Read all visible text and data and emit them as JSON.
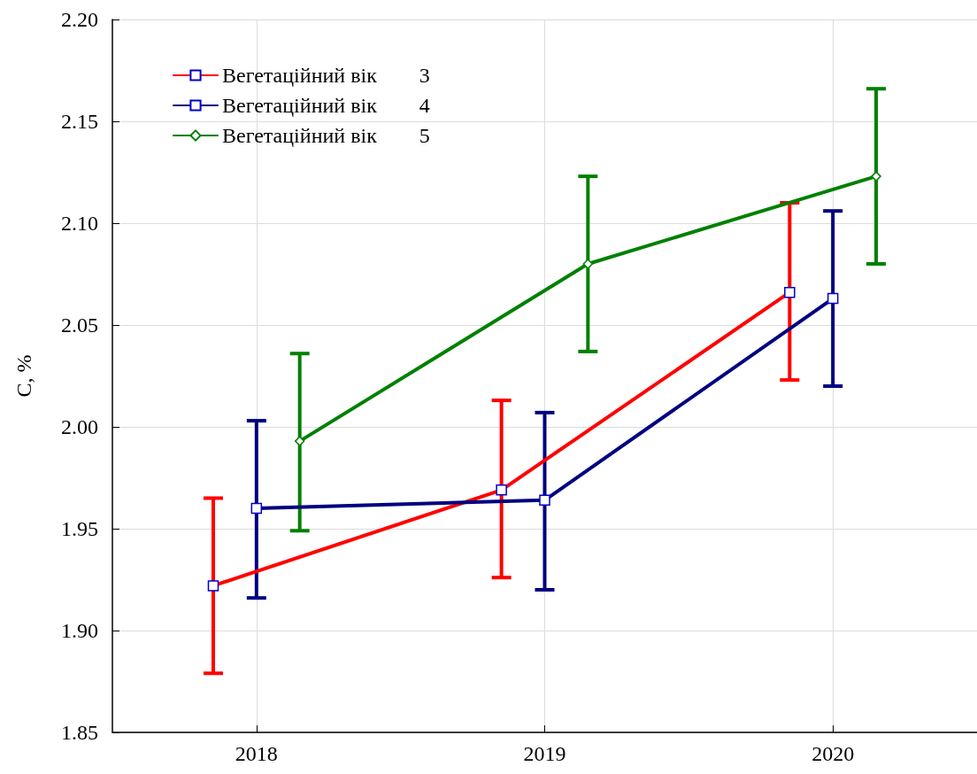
{
  "chart_data": {
    "type": "line",
    "ylabel": "C, %",
    "xlim": [
      2017.5,
      2020.5
    ],
    "xticks": [
      2018,
      2019,
      2020
    ],
    "ylim": [
      1.85,
      2.2
    ],
    "yticks": [
      1.85,
      {
        "value": 1.9,
        "label": "1.90"
      },
      1.95,
      {
        "value": 2,
        "label": "2.00"
      },
      2.05,
      {
        "value": 2.1,
        "label": "2.10"
      },
      2.15,
      {
        "value": 2.2,
        "label": "2.20"
      }
    ],
    "grid": true,
    "legend": "top left",
    "line_style": "solid",
    "series": [
      {
        "name": "Вегетаційний вік        3",
        "color": "#ff0000",
        "marker": "square",
        "x": [
          2017.85,
          2018.85,
          2019.85
        ],
        "values": [
          1.922,
          1.969,
          2.066
        ],
        "errors": [
          [
            1.879,
            1.965
          ],
          [
            1.926,
            2.013
          ],
          [
            2.023,
            2.11
          ]
        ]
      },
      {
        "name": "Вегетаційний вік        4",
        "color": "#000080",
        "marker": "square",
        "x": [
          2018,
          2019,
          2020
        ],
        "values": [
          1.96,
          1.964,
          2.063
        ],
        "errors": [
          [
            1.916,
            2.003
          ],
          [
            1.92,
            2.007
          ],
          [
            2.02,
            2.106
          ]
        ]
      },
      {
        "name": "Вегетаційний вік        5",
        "color": "#008000",
        "marker": "diamond",
        "x": [
          2018.15,
          2019.15,
          2020.15
        ],
        "values": [
          1.993,
          2.08,
          2.123
        ],
        "errors": [
          [
            1.949,
            2.036
          ],
          [
            2.037,
            2.123
          ],
          [
            2.08,
            2.166
          ]
        ]
      }
    ]
  }
}
